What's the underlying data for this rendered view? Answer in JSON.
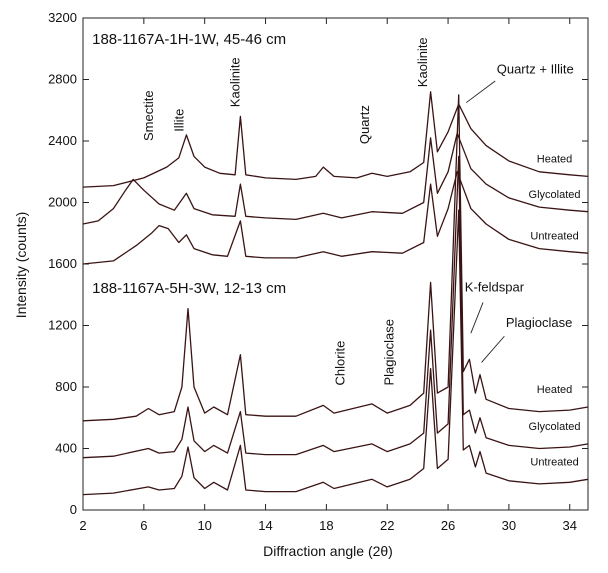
{
  "chart_data": {
    "type": "line",
    "xlabel": "Diffraction angle (2θ)",
    "ylabel": "Intensity (counts)",
    "xlim": [
      2,
      35.2
    ],
    "ylim": [
      0,
      3200
    ],
    "x_ticks": [
      2,
      6,
      10,
      14,
      18,
      22,
      26,
      30,
      34
    ],
    "y_ticks": [
      0,
      400,
      800,
      1200,
      1600,
      2000,
      2400,
      2800,
      3200
    ],
    "grid": false,
    "legend": "none",
    "line_color": "#3a1414",
    "sample_titles": [
      {
        "text": "188-1167A-1H-1W, 45-46 cm",
        "x": 2.6,
        "y": 3030
      },
      {
        "text": "188-1167A-5H-3W, 12-13 cm",
        "x": 2.6,
        "y": 1410
      }
    ],
    "series": [
      {
        "name": "Heated",
        "sample": "188-1167A-1H-1W, 45-46 cm",
        "label_at": [
          33,
          2260
        ],
        "points": [
          [
            2,
            2100
          ],
          [
            4,
            2110
          ],
          [
            6,
            2160
          ],
          [
            7.5,
            2230
          ],
          [
            8.3,
            2290
          ],
          [
            8.8,
            2440
          ],
          [
            9.3,
            2300
          ],
          [
            10,
            2230
          ],
          [
            11,
            2190
          ],
          [
            12,
            2180
          ],
          [
            12.35,
            2560
          ],
          [
            12.7,
            2180
          ],
          [
            14,
            2160
          ],
          [
            16,
            2150
          ],
          [
            17.3,
            2170
          ],
          [
            17.8,
            2230
          ],
          [
            18.5,
            2170
          ],
          [
            20,
            2160
          ],
          [
            21,
            2190
          ],
          [
            22,
            2170
          ],
          [
            23.5,
            2200
          ],
          [
            24.4,
            2260
          ],
          [
            24.85,
            2720
          ],
          [
            25.3,
            2330
          ],
          [
            26,
            2460
          ],
          [
            26.7,
            2640
          ],
          [
            27.5,
            2480
          ],
          [
            28.5,
            2370
          ],
          [
            30,
            2270
          ],
          [
            32,
            2200
          ],
          [
            34,
            2180
          ],
          [
            35.2,
            2170
          ]
        ]
      },
      {
        "name": "Glycolated",
        "sample": "188-1167A-1H-1W, 45-46 cm",
        "label_at": [
          33,
          2030
        ],
        "points": [
          [
            2,
            1860
          ],
          [
            3,
            1880
          ],
          [
            4,
            1960
          ],
          [
            4.8,
            2080
          ],
          [
            5.3,
            2150
          ],
          [
            6,
            2080
          ],
          [
            7,
            1990
          ],
          [
            8,
            1950
          ],
          [
            8.8,
            2060
          ],
          [
            9.3,
            1960
          ],
          [
            10.5,
            1920
          ],
          [
            12,
            1910
          ],
          [
            12.35,
            2120
          ],
          [
            12.7,
            1910
          ],
          [
            14,
            1900
          ],
          [
            16,
            1890
          ],
          [
            17.8,
            1930
          ],
          [
            19,
            1900
          ],
          [
            21,
            1940
          ],
          [
            23,
            1930
          ],
          [
            24.4,
            2000
          ],
          [
            24.85,
            2420
          ],
          [
            25.3,
            2060
          ],
          [
            26,
            2200
          ],
          [
            26.6,
            2450
          ],
          [
            27.5,
            2220
          ],
          [
            28.5,
            2120
          ],
          [
            30,
            2030
          ],
          [
            32,
            1970
          ],
          [
            34,
            1950
          ],
          [
            35.2,
            1940
          ]
        ]
      },
      {
        "name": "Untreated",
        "sample": "188-1167A-1H-1W, 45-46 cm",
        "label_at": [
          33,
          1760
        ],
        "points": [
          [
            2,
            1600
          ],
          [
            4,
            1620
          ],
          [
            5.5,
            1720
          ],
          [
            6.5,
            1800
          ],
          [
            7,
            1850
          ],
          [
            7.6,
            1830
          ],
          [
            8.3,
            1740
          ],
          [
            8.8,
            1790
          ],
          [
            9.3,
            1700
          ],
          [
            10.5,
            1660
          ],
          [
            11.5,
            1650
          ],
          [
            12.35,
            1880
          ],
          [
            12.7,
            1650
          ],
          [
            14,
            1640
          ],
          [
            16,
            1640
          ],
          [
            17.8,
            1680
          ],
          [
            19,
            1650
          ],
          [
            21,
            1680
          ],
          [
            23,
            1670
          ],
          [
            24.4,
            1740
          ],
          [
            24.85,
            2120
          ],
          [
            25.3,
            1780
          ],
          [
            26,
            1960
          ],
          [
            26.6,
            2200
          ],
          [
            27.5,
            1960
          ],
          [
            28.5,
            1860
          ],
          [
            30,
            1760
          ],
          [
            32,
            1700
          ],
          [
            34,
            1680
          ],
          [
            35.2,
            1670
          ]
        ]
      },
      {
        "name": "Heated",
        "sample": "188-1167A-5H-3W, 12-13 cm",
        "label_at": [
          33,
          760
        ],
        "points": [
          [
            2,
            580
          ],
          [
            4,
            590
          ],
          [
            5.5,
            610
          ],
          [
            6.3,
            660
          ],
          [
            7,
            620
          ],
          [
            8,
            640
          ],
          [
            8.5,
            800
          ],
          [
            8.9,
            1310
          ],
          [
            9.3,
            800
          ],
          [
            10,
            630
          ],
          [
            10.6,
            670
          ],
          [
            11.5,
            620
          ],
          [
            12.35,
            1010
          ],
          [
            12.7,
            620
          ],
          [
            14,
            610
          ],
          [
            16,
            610
          ],
          [
            17.8,
            680
          ],
          [
            18.5,
            630
          ],
          [
            21,
            690
          ],
          [
            22,
            630
          ],
          [
            23.5,
            680
          ],
          [
            24.4,
            760
          ],
          [
            24.85,
            1480
          ],
          [
            25.3,
            760
          ],
          [
            26,
            800
          ],
          [
            26.7,
            2700
          ],
          [
            27,
            900
          ],
          [
            27.4,
            980
          ],
          [
            27.8,
            760
          ],
          [
            28.1,
            880
          ],
          [
            28.5,
            720
          ],
          [
            30,
            660
          ],
          [
            32,
            640
          ],
          [
            34,
            650
          ],
          [
            35.2,
            670
          ]
        ]
      },
      {
        "name": "Glycolated",
        "sample": "188-1167A-5H-3W, 12-13 cm",
        "label_at": [
          33,
          520
        ],
        "points": [
          [
            2,
            340
          ],
          [
            4,
            350
          ],
          [
            6.3,
            400
          ],
          [
            7,
            370
          ],
          [
            8,
            380
          ],
          [
            8.5,
            460
          ],
          [
            8.9,
            670
          ],
          [
            9.3,
            450
          ],
          [
            10,
            380
          ],
          [
            10.6,
            420
          ],
          [
            11.5,
            370
          ],
          [
            12.35,
            640
          ],
          [
            12.7,
            370
          ],
          [
            14,
            360
          ],
          [
            16,
            360
          ],
          [
            17.8,
            420
          ],
          [
            18.5,
            380
          ],
          [
            21,
            430
          ],
          [
            22,
            380
          ],
          [
            23.5,
            430
          ],
          [
            24.4,
            500
          ],
          [
            24.85,
            1170
          ],
          [
            25.3,
            500
          ],
          [
            26,
            560
          ],
          [
            26.7,
            2300
          ],
          [
            27,
            620
          ],
          [
            27.4,
            650
          ],
          [
            27.8,
            500
          ],
          [
            28.1,
            600
          ],
          [
            28.5,
            470
          ],
          [
            30,
            420
          ],
          [
            32,
            400
          ],
          [
            34,
            410
          ],
          [
            35.2,
            430
          ]
        ]
      },
      {
        "name": "Untreated",
        "sample": "188-1167A-5H-3W, 12-13 cm",
        "label_at": [
          33,
          290
        ],
        "points": [
          [
            2,
            100
          ],
          [
            4,
            110
          ],
          [
            6.3,
            150
          ],
          [
            7,
            130
          ],
          [
            8,
            140
          ],
          [
            8.5,
            220
          ],
          [
            8.9,
            410
          ],
          [
            9.3,
            210
          ],
          [
            10,
            140
          ],
          [
            10.6,
            180
          ],
          [
            11.5,
            130
          ],
          [
            12.35,
            420
          ],
          [
            12.7,
            130
          ],
          [
            14,
            120
          ],
          [
            16,
            120
          ],
          [
            17.8,
            180
          ],
          [
            18.5,
            140
          ],
          [
            21,
            200
          ],
          [
            22,
            150
          ],
          [
            23.5,
            200
          ],
          [
            24.4,
            270
          ],
          [
            24.85,
            920
          ],
          [
            25.3,
            270
          ],
          [
            26,
            330
          ],
          [
            26.7,
            1950
          ],
          [
            27,
            390
          ],
          [
            27.4,
            420
          ],
          [
            27.8,
            280
          ],
          [
            28.1,
            380
          ],
          [
            28.5,
            240
          ],
          [
            30,
            190
          ],
          [
            32,
            170
          ],
          [
            34,
            180
          ],
          [
            35.2,
            200
          ]
        ]
      }
    ],
    "annotations": [
      {
        "text": "Smectite",
        "x": 6.6,
        "y": 2400,
        "rotate": true
      },
      {
        "text": "Illite",
        "x": 8.6,
        "y": 2460,
        "rotate": true
      },
      {
        "text": "Kaolinite",
        "x": 12.3,
        "y": 2620,
        "rotate": true
      },
      {
        "text": "Quartz",
        "x": 20.8,
        "y": 2380,
        "rotate": true
      },
      {
        "text": "Kaolinite",
        "x": 24.6,
        "y": 2750,
        "rotate": true
      },
      {
        "text": "Quartz + Illite",
        "x": 29.2,
        "y": 2840,
        "rotate": false
      },
      {
        "text": "Chlorite",
        "x": 19.2,
        "y": 810,
        "rotate": true
      },
      {
        "text": "Plagioclase",
        "x": 22.4,
        "y": 810,
        "rotate": true
      },
      {
        "text": "K-feldspar",
        "x": 27.1,
        "y": 1420,
        "rotate": false
      },
      {
        "text": "Plagioclase",
        "x": 29.8,
        "y": 1190,
        "rotate": false
      }
    ]
  }
}
